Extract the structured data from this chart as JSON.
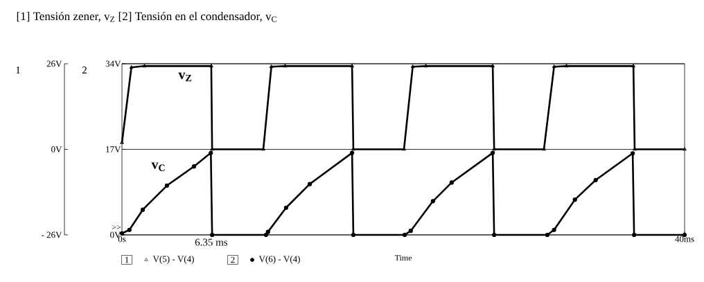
{
  "chart_data": {
    "type": "line",
    "title": "[1] Tensión zener, v$_{Z}$ [2] Tensión en el condensador, v$_{C}$",
    "xlabel": "Time",
    "ylabel": "1",
    "y2label": "2",
    "xlim": [
      0,
      40
    ],
    "xticks": [
      {
        "value": 0,
        "label": "0s"
      },
      {
        "value": 40,
        "label": "40ms"
      }
    ],
    "ylim": [
      -26,
      26
    ],
    "yticks": [
      {
        "value": -26,
        "label": "- 26V"
      },
      {
        "value": 0,
        "label": "0V"
      },
      {
        "value": 26,
        "label": "26V"
      }
    ],
    "y2lim": [
      0,
      34
    ],
    "y2ticks": [
      {
        "value": 0,
        "label": "0V"
      },
      {
        "value": 17,
        "label": "17V"
      },
      {
        "value": 34,
        "label": "34V"
      }
    ],
    "grid": "y",
    "legend": "bottom",
    "line_style": "solid",
    "series": [
      {
        "name": "V(5) - V(4)",
        "color": "#000000",
        "marker": "triangle",
        "x": [
          0,
          0.67,
          1.6,
          6.35,
          6.41,
          10.05,
          10.62,
          11.6,
          16.36,
          16.45,
          20.05,
          20.67,
          21.6,
          26.36,
          26.46,
          30.0,
          30.72,
          31.6,
          36.36,
          36.45,
          40
        ],
        "values": [
          2,
          24.9,
          25.3,
          25.3,
          0,
          0,
          25.1,
          25.3,
          25.3,
          0,
          0,
          25.1,
          25.3,
          25.3,
          0,
          0,
          25.1,
          25.3,
          25.3,
          0,
          0
        ]
      },
      {
        "name": "V(6) - V(4)",
        "color": "#000000",
        "marker": "circle",
        "axis": "y2",
        "x": [
          0,
          0.53,
          1.48,
          3.2,
          5.12,
          6.32,
          6.41,
          10.24,
          10.38,
          11.67,
          13.35,
          16.36,
          16.45,
          20.1,
          20.53,
          22.11,
          23.44,
          26.36,
          26.46,
          30.24,
          30.72,
          32.2,
          33.68,
          36.31,
          36.41,
          40
        ],
        "values": [
          0.3,
          1.0,
          5.0,
          9.8,
          13.6,
          16.3,
          0,
          0,
          0.6,
          5.4,
          10.1,
          16.3,
          0,
          0,
          0.8,
          6.7,
          10.4,
          16.3,
          0,
          0,
          1.0,
          7.0,
          10.9,
          16.2,
          0,
          0
        ]
      }
    ],
    "annotations": [
      "v$_{Z}$",
      "v$_{C}$",
      {
        "text": "6.35 ms",
        "x": 6.35,
        "y": -26
      },
      ">>",
      "1",
      "2"
    ]
  }
}
